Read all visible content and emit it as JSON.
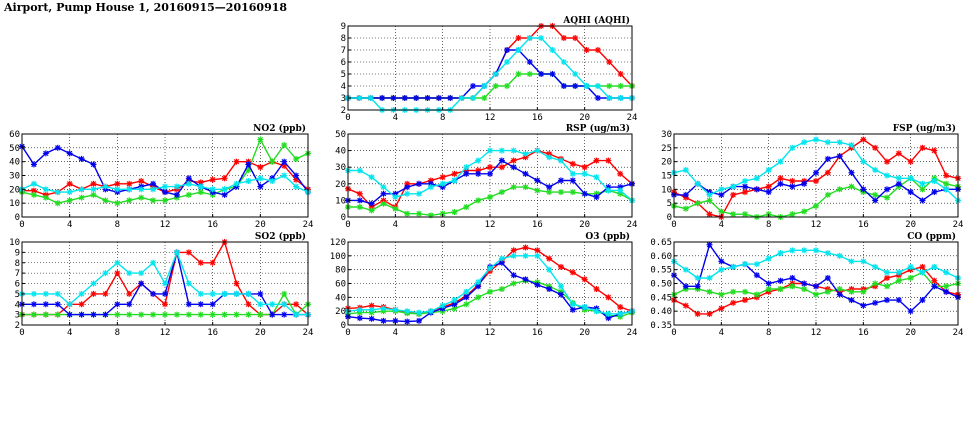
{
  "title": "Airport, Pump House 1, 20160915—20160918",
  "colors": {
    "red": "#ff0000",
    "green": "#22dd22",
    "blue": "#0000ee",
    "cyan": "#00e5ee"
  },
  "chart_data": [
    {
      "id": "aqhi",
      "type": "line",
      "title": "AQHI (AQHI)",
      "xlim": [
        0,
        24
      ],
      "ylim": [
        2,
        9
      ],
      "xticks": [
        0,
        4,
        8,
        12,
        16,
        20,
        24
      ],
      "yticks": [
        2,
        3,
        4,
        5,
        6,
        7,
        8,
        9
      ],
      "grid": true,
      "series": [
        {
          "color": "red",
          "values": [
            3,
            3,
            3,
            3,
            3,
            3,
            3,
            3,
            3,
            3,
            3,
            3,
            4,
            5,
            7,
            8,
            8,
            9,
            9,
            8,
            8,
            7,
            7,
            6,
            5,
            4
          ]
        },
        {
          "color": "green",
          "values": [
            3,
            3,
            3,
            3,
            3,
            3,
            3,
            3,
            3,
            3,
            3,
            3,
            3,
            4,
            4,
            5,
            5,
            5,
            5,
            4,
            4,
            4,
            4,
            4,
            4,
            4
          ]
        },
        {
          "color": "blue",
          "values": [
            3,
            3,
            3,
            3,
            3,
            3,
            3,
            3,
            3,
            3,
            3,
            4,
            4,
            5,
            7,
            7,
            6,
            5,
            5,
            4,
            4,
            4,
            3,
            3,
            3,
            3
          ]
        },
        {
          "color": "cyan",
          "values": [
            3,
            3,
            3,
            2,
            2,
            2,
            2,
            2,
            2,
            2,
            3,
            3,
            4,
            5,
            6,
            7,
            8,
            8,
            7,
            6,
            5,
            4,
            4,
            3,
            3,
            3
          ]
        }
      ]
    },
    {
      "id": "no2",
      "type": "line",
      "title": "NO2 (ppb)",
      "xlim": [
        0,
        24
      ],
      "ylim": [
        0,
        60
      ],
      "xticks": [
        0,
        4,
        8,
        12,
        16,
        20,
        24
      ],
      "yticks": [
        0,
        10,
        20,
        30,
        40,
        50,
        60
      ],
      "grid": true,
      "series": [
        {
          "color": "red",
          "values": [
            19,
            19,
            16,
            18,
            24,
            20,
            24,
            22,
            24,
            24,
            26,
            22,
            18,
            20,
            26,
            25,
            27,
            28,
            40,
            40,
            36,
            40,
            37,
            27,
            20
          ]
        },
        {
          "color": "green",
          "values": [
            18,
            16,
            14,
            10,
            12,
            14,
            16,
            12,
            10,
            12,
            14,
            12,
            12,
            14,
            16,
            18,
            16,
            20,
            22,
            34,
            56,
            40,
            52,
            42,
            46
          ]
        },
        {
          "color": "blue",
          "values": [
            51,
            38,
            46,
            50,
            46,
            42,
            38,
            20,
            18,
            20,
            22,
            24,
            18,
            16,
            28,
            22,
            18,
            16,
            22,
            38,
            22,
            28,
            40,
            30,
            18
          ]
        },
        {
          "color": "cyan",
          "values": [
            20,
            24,
            20,
            18,
            18,
            20,
            20,
            22,
            20,
            20,
            20,
            20,
            22,
            22,
            24,
            22,
            20,
            20,
            24,
            26,
            28,
            26,
            30,
            22,
            18
          ]
        }
      ]
    },
    {
      "id": "rsp",
      "type": "line",
      "title": "RSP (ug/m3)",
      "xlim": [
        0,
        24
      ],
      "ylim": [
        0,
        50
      ],
      "xticks": [
        0,
        4,
        8,
        12,
        16,
        20,
        24
      ],
      "yticks": [
        0,
        10,
        20,
        30,
        40,
        50
      ],
      "grid": true,
      "series": [
        {
          "color": "red",
          "values": [
            17,
            14,
            6,
            10,
            6,
            20,
            20,
            22,
            24,
            26,
            28,
            28,
            30,
            30,
            34,
            36,
            40,
            38,
            35,
            32,
            30,
            34,
            34,
            26,
            20
          ]
        },
        {
          "color": "green",
          "values": [
            6,
            6,
            4,
            8,
            5,
            2,
            2,
            1,
            2,
            3,
            6,
            10,
            12,
            15,
            18,
            18,
            16,
            15,
            15,
            15,
            14,
            14,
            16,
            14,
            10
          ]
        },
        {
          "color": "blue",
          "values": [
            10,
            10,
            8,
            14,
            14,
            18,
            20,
            20,
            18,
            22,
            26,
            26,
            26,
            34,
            30,
            26,
            22,
            18,
            22,
            22,
            14,
            12,
            18,
            18,
            20
          ]
        },
        {
          "color": "cyan",
          "values": [
            28,
            28,
            24,
            18,
            12,
            14,
            14,
            18,
            20,
            22,
            30,
            34,
            40,
            40,
            40,
            38,
            40,
            36,
            34,
            26,
            26,
            24,
            16,
            16,
            10
          ]
        }
      ]
    },
    {
      "id": "fsp",
      "type": "line",
      "title": "FSP (ug/m3)",
      "xlim": [
        0,
        24
      ],
      "ylim": [
        0,
        30
      ],
      "xticks": [
        0,
        4,
        8,
        12,
        16,
        20,
        24
      ],
      "yticks": [
        0,
        5,
        10,
        15,
        20,
        25,
        30
      ],
      "grid": true,
      "series": [
        {
          "color": "red",
          "values": [
            9,
            7,
            5,
            1,
            0,
            8,
            9,
            10,
            11,
            14,
            13,
            13,
            13,
            16,
            22,
            25,
            28,
            25,
            20,
            23,
            20,
            25,
            24,
            15,
            14
          ]
        },
        {
          "color": "green",
          "values": [
            4,
            3,
            5,
            6,
            2,
            1,
            1,
            0,
            1,
            0,
            1,
            2,
            4,
            8,
            10,
            11,
            9,
            8,
            7,
            11,
            14,
            10,
            14,
            12,
            11
          ]
        },
        {
          "color": "blue",
          "values": [
            8,
            8,
            12,
            9,
            8,
            11,
            11,
            10,
            9,
            12,
            11,
            12,
            16,
            21,
            22,
            16,
            10,
            6,
            10,
            12,
            9,
            6,
            9,
            10,
            10
          ]
        },
        {
          "color": "cyan",
          "values": [
            16,
            17,
            12,
            8,
            10,
            11,
            13,
            14,
            17,
            20,
            25,
            27,
            28,
            27,
            27,
            26,
            20,
            17,
            15,
            14,
            14,
            12,
            13,
            10,
            6
          ]
        }
      ]
    },
    {
      "id": "so2",
      "type": "line",
      "title": "SO2 (ppb)",
      "xlim": [
        0,
        24
      ],
      "ylim": [
        2,
        10
      ],
      "xticks": [
        0,
        4,
        8,
        12,
        16,
        20,
        24
      ],
      "yticks": [
        2,
        3,
        4,
        5,
        6,
        7,
        8,
        9,
        10
      ],
      "grid": true,
      "series": [
        {
          "color": "red",
          "values": [
            3,
            3,
            3,
            3,
            4,
            4,
            5,
            5,
            7,
            5,
            6,
            5,
            4,
            9,
            9,
            8,
            8,
            10,
            6,
            4,
            3,
            3,
            4,
            4,
            3
          ]
        },
        {
          "color": "green",
          "values": [
            3,
            3,
            3,
            3,
            3,
            3,
            3,
            3,
            3,
            3,
            3,
            3,
            3,
            3,
            3,
            3,
            3,
            3,
            3,
            3,
            3,
            3,
            5,
            3,
            4
          ]
        },
        {
          "color": "blue",
          "values": [
            4,
            4,
            4,
            4,
            3,
            3,
            3,
            3,
            4,
            4,
            6,
            5,
            5,
            9,
            4,
            4,
            4,
            5,
            5,
            5,
            5,
            3,
            3,
            3,
            3
          ]
        },
        {
          "color": "cyan",
          "values": [
            5,
            5,
            5,
            5,
            4,
            5,
            6,
            7,
            8,
            7,
            7,
            8,
            6,
            9,
            6,
            5,
            5,
            5,
            5,
            5,
            4,
            4,
            4,
            3,
            3
          ]
        }
      ]
    },
    {
      "id": "o3",
      "type": "line",
      "title": "O3 (ppb)",
      "xlim": [
        0,
        24
      ],
      "ylim": [
        0,
        120
      ],
      "xticks": [
        0,
        4,
        8,
        12,
        16,
        20,
        24
      ],
      "yticks": [
        0,
        20,
        40,
        60,
        80,
        100,
        120
      ],
      "grid": true,
      "series": [
        {
          "color": "red",
          "values": [
            24,
            25,
            28,
            26,
            22,
            18,
            16,
            20,
            26,
            32,
            42,
            58,
            78,
            92,
            108,
            112,
            108,
            96,
            84,
            76,
            66,
            52,
            40,
            26,
            20
          ]
        },
        {
          "color": "green",
          "values": [
            16,
            18,
            18,
            20,
            20,
            17,
            16,
            18,
            20,
            24,
            30,
            40,
            48,
            52,
            60,
            64,
            62,
            56,
            48,
            32,
            22,
            20,
            14,
            12,
            18
          ]
        },
        {
          "color": "blue",
          "values": [
            12,
            10,
            9,
            6,
            6,
            5,
            6,
            18,
            24,
            30,
            40,
            56,
            84,
            90,
            72,
            66,
            58,
            52,
            44,
            22,
            26,
            24,
            10,
            16,
            20
          ]
        },
        {
          "color": "cyan",
          "values": [
            20,
            22,
            22,
            24,
            22,
            20,
            18,
            20,
            28,
            36,
            48,
            62,
            82,
            96,
            100,
            100,
            100,
            80,
            56,
            30,
            26,
            20,
            16,
            16,
            20
          ]
        }
      ]
    },
    {
      "id": "co",
      "type": "line",
      "title": "CO (ppm)",
      "xlim": [
        0,
        24
      ],
      "ylim": [
        0.35,
        0.65
      ],
      "xticks": [
        0,
        4,
        8,
        12,
        16,
        20,
        24
      ],
      "yticks": [
        0.35,
        0.4,
        0.45,
        0.5,
        0.55,
        0.6,
        0.65
      ],
      "grid": true,
      "series": [
        {
          "color": "red",
          "values": [
            0.44,
            0.42,
            0.39,
            0.39,
            0.41,
            0.43,
            0.44,
            0.45,
            0.47,
            0.48,
            0.5,
            0.5,
            0.49,
            0.48,
            0.47,
            0.48,
            0.48,
            0.49,
            0.52,
            0.53,
            0.55,
            0.56,
            0.51,
            0.47,
            0.46
          ]
        },
        {
          "color": "green",
          "values": [
            0.46,
            0.48,
            0.48,
            0.47,
            0.46,
            0.47,
            0.47,
            0.46,
            0.48,
            0.48,
            0.49,
            0.48,
            0.46,
            0.47,
            0.48,
            0.47,
            0.47,
            0.5,
            0.49,
            0.51,
            0.52,
            0.54,
            0.49,
            0.49,
            0.5
          ]
        },
        {
          "color": "blue",
          "values": [
            0.53,
            0.49,
            0.49,
            0.64,
            0.58,
            0.56,
            0.57,
            0.53,
            0.5,
            0.51,
            0.52,
            0.5,
            0.49,
            0.52,
            0.46,
            0.44,
            0.42,
            0.43,
            0.44,
            0.44,
            0.4,
            0.44,
            0.49,
            0.47,
            0.45
          ]
        },
        {
          "color": "cyan",
          "values": [
            0.58,
            0.55,
            0.52,
            0.52,
            0.55,
            0.56,
            0.57,
            0.57,
            0.59,
            0.61,
            0.62,
            0.62,
            0.62,
            0.61,
            0.6,
            0.58,
            0.58,
            0.56,
            0.54,
            0.54,
            0.56,
            0.54,
            0.56,
            0.54,
            0.52
          ]
        }
      ]
    }
  ]
}
